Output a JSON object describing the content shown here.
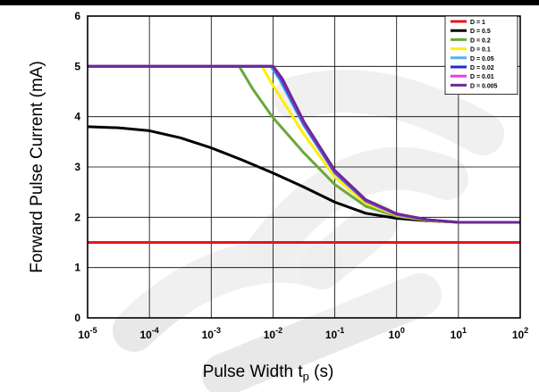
{
  "chart_data": {
    "type": "line",
    "xlabel_main": "Pulse Width t",
    "xlabel_sub": "p",
    "xlabel_unit": " (s)",
    "ylabel": "Forward Pulse Current (mA)",
    "x_scale": "log",
    "xlim": [
      1e-05,
      100
    ],
    "ylim": [
      0,
      6
    ],
    "x_ticks": [
      {
        "base": "10",
        "exp": "-5"
      },
      {
        "base": "10",
        "exp": "-4"
      },
      {
        "base": "10",
        "exp": "-3"
      },
      {
        "base": "10",
        "exp": "-2"
      },
      {
        "base": "10",
        "exp": "-1"
      },
      {
        "base": "10",
        "exp": "0"
      },
      {
        "base": "10",
        "exp": "1"
      },
      {
        "base": "10",
        "exp": "2"
      }
    ],
    "y_ticks": [
      "0",
      "1",
      "2",
      "3",
      "4",
      "5",
      "6"
    ],
    "grid": true,
    "legend_position": "top-right",
    "series": [
      {
        "name": "D = 1",
        "color": "#e8141b",
        "points": [
          [
            1e-05,
            1.5
          ],
          [
            100,
            1.5
          ]
        ]
      },
      {
        "name": "D = 0.5",
        "color": "#000000",
        "points": [
          [
            1e-05,
            3.8
          ],
          [
            3.16e-05,
            3.78
          ],
          [
            0.0001,
            3.72
          ],
          [
            0.000316,
            3.58
          ],
          [
            0.001,
            3.38
          ],
          [
            0.00316,
            3.14
          ],
          [
            0.01,
            2.88
          ],
          [
            0.0316,
            2.6
          ],
          [
            0.1,
            2.3
          ],
          [
            0.316,
            2.08
          ],
          [
            1,
            1.98
          ],
          [
            3.16,
            1.93
          ],
          [
            10,
            1.9
          ],
          [
            100,
            1.9
          ]
        ]
      },
      {
        "name": "D = 0.2",
        "color": "#6aa83a",
        "points": [
          [
            1e-05,
            5.0
          ],
          [
            0.00284,
            5.0
          ],
          [
            0.0047,
            4.55
          ],
          [
            0.01,
            3.98
          ],
          [
            0.0316,
            3.28
          ],
          [
            0.1,
            2.65
          ],
          [
            0.316,
            2.22
          ],
          [
            1,
            2.02
          ],
          [
            3.16,
            1.94
          ],
          [
            10,
            1.9
          ],
          [
            100,
            1.9
          ]
        ]
      },
      {
        "name": "D = 0.1",
        "color": "#ffee00",
        "points": [
          [
            1e-05,
            5.0
          ],
          [
            0.0066,
            5.0
          ],
          [
            0.01,
            4.62
          ],
          [
            0.0316,
            3.65
          ],
          [
            0.1,
            2.8
          ],
          [
            0.316,
            2.28
          ],
          [
            1,
            2.04
          ],
          [
            3.16,
            1.94
          ],
          [
            10,
            1.9
          ],
          [
            100,
            1.9
          ]
        ]
      },
      {
        "name": "D = 0.05",
        "color": "#4fb4ea",
        "points": [
          [
            1e-05,
            5.0
          ],
          [
            0.0092,
            5.0
          ],
          [
            0.0126,
            4.75
          ],
          [
            0.0316,
            3.82
          ],
          [
            0.1,
            2.88
          ],
          [
            0.316,
            2.32
          ],
          [
            1,
            2.05
          ],
          [
            3.16,
            1.95
          ],
          [
            10,
            1.9
          ],
          [
            100,
            1.9
          ]
        ]
      },
      {
        "name": "D = 0.02",
        "color": "#1c2bd8",
        "points": [
          [
            1e-05,
            5.0
          ],
          [
            0.0097,
            5.0
          ],
          [
            0.0135,
            4.75
          ],
          [
            0.0316,
            3.86
          ],
          [
            0.1,
            2.9
          ],
          [
            0.316,
            2.33
          ],
          [
            1,
            2.06
          ],
          [
            3.16,
            1.95
          ],
          [
            10,
            1.9
          ],
          [
            100,
            1.9
          ]
        ]
      },
      {
        "name": "D = 0.01",
        "color": "#ee3ee2",
        "points": [
          [
            1e-05,
            5.0
          ],
          [
            0.0099,
            5.0
          ],
          [
            0.014,
            4.75
          ],
          [
            0.0316,
            3.88
          ],
          [
            0.1,
            2.92
          ],
          [
            0.316,
            2.34
          ],
          [
            1,
            2.06
          ],
          [
            3.16,
            1.95
          ],
          [
            10,
            1.9
          ],
          [
            100,
            1.9
          ]
        ]
      },
      {
        "name": "D = 0.005",
        "color": "#6a2a96",
        "points": [
          [
            1e-05,
            5.0
          ],
          [
            0.0101,
            5.0
          ],
          [
            0.0142,
            4.75
          ],
          [
            0.0316,
            3.9
          ],
          [
            0.1,
            2.93
          ],
          [
            0.316,
            2.35
          ],
          [
            1,
            2.07
          ],
          [
            3.16,
            1.95
          ],
          [
            10,
            1.9
          ],
          [
            100,
            1.9
          ]
        ]
      }
    ]
  },
  "colors": {
    "watermark": "#e4e4e4",
    "grid": "#000000",
    "frame": "#000000"
  }
}
